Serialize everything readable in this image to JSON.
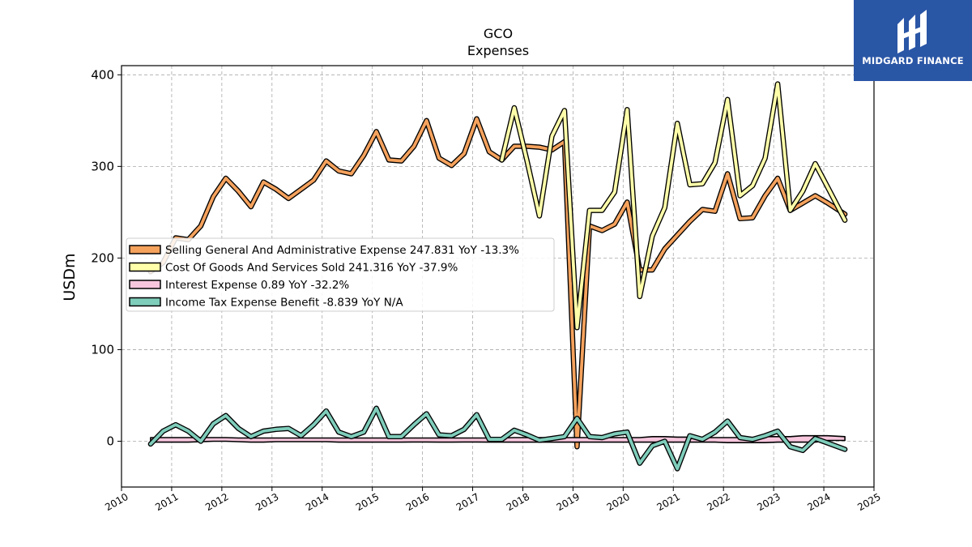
{
  "brand": {
    "name": "MIDGARD FINANCE",
    "bg": "#2a56a6"
  },
  "chart_data": {
    "type": "line",
    "title": "GCO",
    "subtitle": "Expenses",
    "ylabel": "USDm",
    "xlabel": "",
    "xlim": [
      2010,
      2025
    ],
    "ylim": [
      -50,
      410
    ],
    "xticks": [
      2010,
      2011,
      2012,
      2013,
      2014,
      2015,
      2016,
      2017,
      2018,
      2019,
      2020,
      2021,
      2022,
      2023,
      2024,
      2025
    ],
    "yticks": [
      0,
      100,
      200,
      300,
      400
    ],
    "grid": true,
    "legend_position": "center-left",
    "series": [
      {
        "name": "Selling General And Administrative Expense",
        "legend_label": "Selling General And Administrative Expense  247.831 YoY -13.3%",
        "color": "#f5a25d",
        "x": [
          2010.58,
          2010.83,
          2011.08,
          2011.33,
          2011.58,
          2011.83,
          2012.08,
          2012.33,
          2012.58,
          2012.83,
          2013.08,
          2013.33,
          2013.58,
          2013.83,
          2014.08,
          2014.33,
          2014.58,
          2014.83,
          2015.08,
          2015.33,
          2015.58,
          2015.83,
          2016.08,
          2016.33,
          2016.58,
          2016.83,
          2017.08,
          2017.33,
          2017.58,
          2017.83,
          2018.08,
          2018.33,
          2018.58,
          2018.83,
          2019.08,
          2019.33,
          2019.58,
          2019.83,
          2020.08,
          2020.33,
          2020.58,
          2020.83,
          2021.08,
          2021.33,
          2021.58,
          2021.83,
          2022.08,
          2022.33,
          2022.58,
          2022.83,
          2023.08,
          2023.33,
          2023.58,
          2023.83,
          2024.08,
          2024.42
        ],
        "y": [
          185,
          195,
          222,
          220,
          235,
          267,
          287,
          273,
          256,
          283,
          275,
          265,
          275,
          285,
          306,
          295,
          292,
          312,
          338,
          307,
          306,
          322,
          350,
          309,
          301,
          314,
          352,
          316,
          307,
          322,
          322,
          321,
          318,
          327,
          -6,
          235,
          230,
          237,
          261,
          187,
          187,
          210,
          225,
          240,
          253,
          251,
          292,
          243,
          244,
          268,
          287,
          252,
          260,
          268,
          260,
          247.831
        ]
      },
      {
        "name": "Cost Of Goods And Services Sold",
        "legend_label": "Cost Of Goods And Services Sold  241.316 YoY -37.9%",
        "color": "#ffffaa",
        "x": [
          2017.58,
          2017.83,
          2018.08,
          2018.33,
          2018.58,
          2018.83,
          2019.08,
          2019.33,
          2019.58,
          2019.83,
          2020.08,
          2020.33,
          2020.58,
          2020.83,
          2021.08,
          2021.33,
          2021.58,
          2021.83,
          2022.08,
          2022.33,
          2022.58,
          2022.83,
          2023.08,
          2023.33,
          2023.58,
          2023.83,
          2024.08,
          2024.42
        ],
        "y": [
          307,
          364,
          307,
          246,
          333,
          361,
          124,
          252,
          252,
          272,
          362,
          158,
          224,
          255,
          347,
          280,
          281,
          304,
          373,
          268,
          279,
          309,
          390,
          252,
          273,
          303,
          277,
          241.316
        ]
      },
      {
        "name": "Interest Expense",
        "legend_label": "Interest Expense  0.89 YoY -32.2%",
        "color": "#f7c6dd",
        "x": [
          2010.58,
          2010.83,
          2011.08,
          2011.33,
          2011.58,
          2011.83,
          2012.08,
          2012.33,
          2012.58,
          2012.83,
          2013.08,
          2013.33,
          2013.58,
          2013.83,
          2014.08,
          2014.33,
          2014.58,
          2014.83,
          2015.08,
          2015.33,
          2015.58,
          2015.83,
          2016.08,
          2016.33,
          2016.58,
          2016.83,
          2017.08,
          2017.33,
          2017.58,
          2017.83,
          2018.08,
          2018.33,
          2018.58,
          2018.83,
          2019.08,
          2019.33,
          2019.58,
          2019.83,
          2020.08,
          2020.33,
          2020.58,
          2020.83,
          2021.08,
          2021.33,
          2021.58,
          2021.83,
          2022.08,
          2022.33,
          2022.58,
          2022.83,
          2023.08,
          2023.33,
          2023.58,
          2023.83,
          2024.08,
          2024.42
        ],
        "lower": [
          -1,
          -1,
          -1,
          -1,
          -0.5,
          0,
          0,
          -0.5,
          -1,
          -1,
          -0.5,
          -0.5,
          -0.5,
          -0.5,
          -0.5,
          -1,
          -1,
          -1,
          -1,
          -1,
          -1,
          -0.8,
          -0.8,
          -1,
          -1,
          -0.8,
          -0.8,
          -1,
          -1,
          -1,
          -1,
          -1,
          -1,
          -1,
          -1,
          -1,
          -1,
          -1,
          -1,
          -1,
          -1,
          -1,
          -1,
          -1,
          -1,
          -1,
          -1.5,
          -1.5,
          -1.5,
          -1.5,
          -1,
          -1,
          -1,
          -1,
          0.89,
          0.89
        ],
        "upper": [
          4,
          4,
          4,
          4,
          4,
          4,
          4,
          3.5,
          3.5,
          3.5,
          3.5,
          3.5,
          3.5,
          3.5,
          3.5,
          3.5,
          3.5,
          3.5,
          3.5,
          3.5,
          3.5,
          3.5,
          3.5,
          3.5,
          3.5,
          3.5,
          3.5,
          3.5,
          3.5,
          4,
          4,
          4,
          4,
          4,
          4,
          4,
          4,
          4,
          4,
          4,
          5,
          5,
          4.5,
          4.5,
          4,
          4,
          4,
          4,
          4,
          5,
          5,
          5,
          6,
          6,
          6,
          5
        ]
      },
      {
        "name": "Income Tax Expense Benefit",
        "legend_label": "Income Tax Expense Benefit  -8.839 YoY N/A",
        "color": "#7fcdbb",
        "x": [
          2010.58,
          2010.83,
          2011.08,
          2011.33,
          2011.58,
          2011.83,
          2012.08,
          2012.33,
          2012.58,
          2012.83,
          2013.08,
          2013.33,
          2013.58,
          2013.83,
          2014.08,
          2014.33,
          2014.58,
          2014.83,
          2015.08,
          2015.33,
          2015.58,
          2015.83,
          2016.08,
          2016.33,
          2016.58,
          2016.83,
          2017.08,
          2017.33,
          2017.58,
          2017.83,
          2018.08,
          2018.33,
          2018.58,
          2018.83,
          2019.08,
          2019.33,
          2019.58,
          2019.83,
          2020.08,
          2020.33,
          2020.58,
          2020.83,
          2021.08,
          2021.33,
          2021.58,
          2021.83,
          2022.08,
          2022.33,
          2022.58,
          2022.83,
          2023.08,
          2023.33,
          2023.58,
          2023.83,
          2024.08,
          2024.42
        ],
        "y": [
          -3,
          11,
          18,
          11,
          0,
          19,
          28,
          14,
          5,
          11,
          13,
          14,
          6,
          18,
          33,
          10,
          5,
          10,
          36,
          5,
          5,
          18,
          30,
          7,
          6,
          13,
          29,
          2,
          2,
          12,
          7,
          1,
          3,
          5,
          25,
          5,
          4,
          8,
          10,
          -24,
          -5,
          0,
          -30,
          6,
          2,
          10,
          22,
          4,
          2,
          6,
          11,
          -6,
          -10,
          3,
          -2,
          -8.839
        ]
      }
    ]
  }
}
